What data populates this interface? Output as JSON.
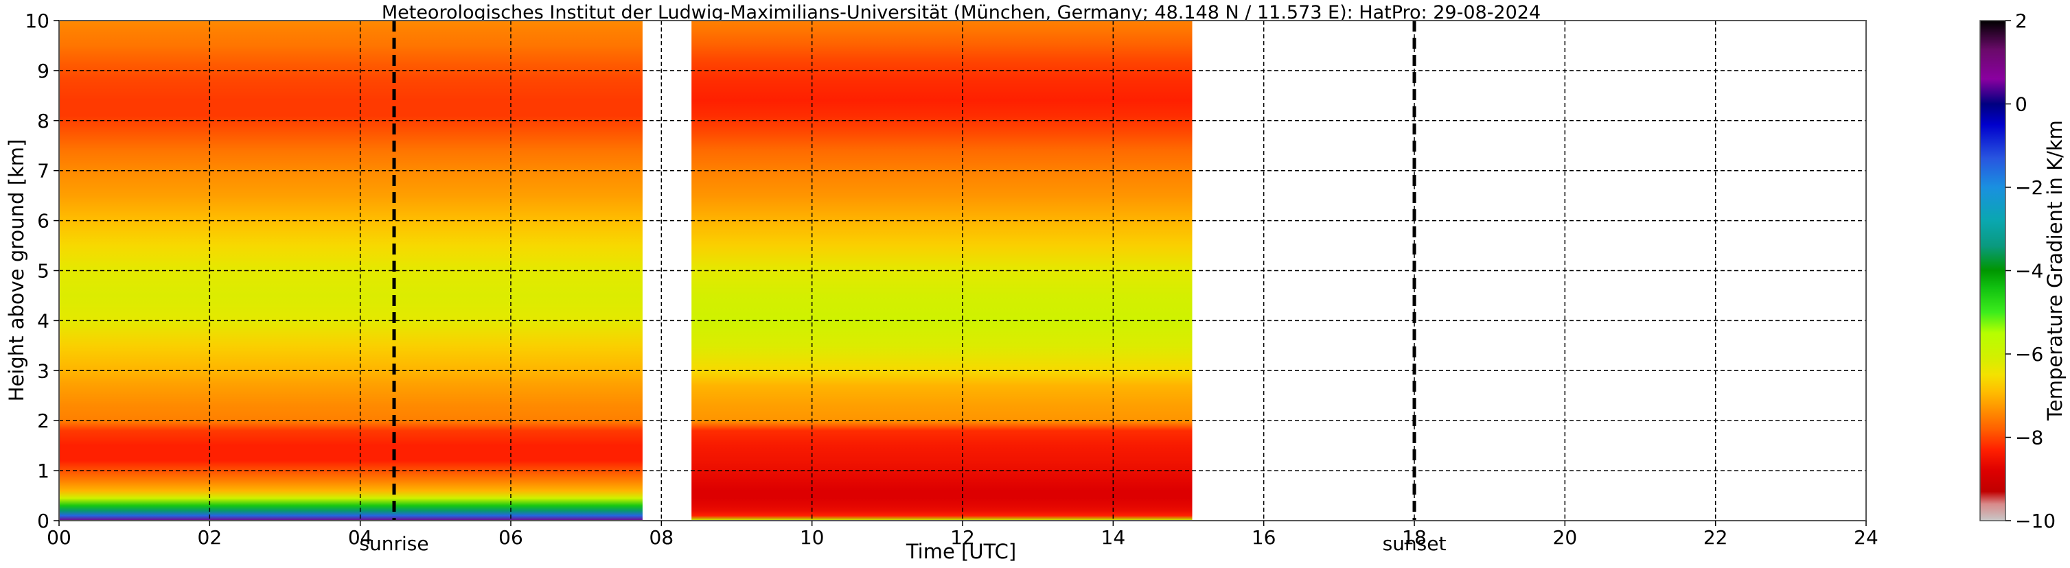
{
  "chart_data": {
    "type": "heatmap",
    "title": "Meteorologisches Institut der Ludwig-Maximilians-Universität (München, Germany; 48.148 N / 11.573 E):    HatPro: 29-08-2024",
    "xlabel": "Time [UTC]",
    "ylabel": "Height above ground [km]",
    "xlim": [
      0,
      24
    ],
    "ylim": [
      0,
      10
    ],
    "x_ticks": [
      "00",
      "02",
      "04",
      "06",
      "08",
      "10",
      "12",
      "14",
      "16",
      "18",
      "20",
      "22",
      "24"
    ],
    "y_ticks": [
      "0",
      "1",
      "2",
      "3",
      "4",
      "5",
      "6",
      "7",
      "8",
      "9",
      "10"
    ],
    "grid": true,
    "colorbar": {
      "label": "Temperature Gradient in K/km",
      "range": [
        -10,
        2
      ],
      "ticks": [
        "2",
        "0",
        "−2",
        "−4",
        "−6",
        "−8",
        "−10"
      ]
    },
    "data_segments": [
      {
        "start": 0.0,
        "end": 7.75
      },
      {
        "start": 8.4,
        "end": 15.05
      }
    ],
    "events": [
      {
        "label": "sunrise",
        "time": 4.45
      },
      {
        "label": "sunset",
        "time": 18.0
      }
    ],
    "profile_km": [
      0.0,
      0.1,
      0.2,
      0.3,
      0.45,
      0.6,
      0.8,
      1.0,
      1.2,
      1.5,
      1.8,
      2.0,
      2.3,
      2.7,
      3.0,
      3.5,
      4.0,
      4.5,
      5.0,
      5.5,
      6.0,
      6.5,
      7.0,
      7.4,
      7.8,
      8.1,
      8.4,
      8.8,
      9.2,
      9.5,
      9.8,
      10.0
    ],
    "profiles": {
      "night_K_per_km": [
        1.0,
        -1.5,
        -3.5,
        -4.5,
        -6.0,
        -7.0,
        -7.5,
        -7.9,
        -8.3,
        -8.3,
        -8.1,
        -7.5,
        -7.4,
        -7.2,
        -7.0,
        -6.7,
        -6.3,
        -6.2,
        -6.3,
        -6.6,
        -6.9,
        -7.2,
        -7.4,
        -7.6,
        -7.9,
        -8.1,
        -8.1,
        -8.0,
        -7.8,
        -7.6,
        -7.5,
        -7.4
      ],
      "day_K_per_km": [
        -5.5,
        -8.3,
        -8.6,
        -8.7,
        -8.8,
        -8.8,
        -8.7,
        -8.6,
        -8.5,
        -8.4,
        -8.2,
        -7.3,
        -7.2,
        -7.0,
        -6.6,
        -6.2,
        -6.0,
        -6.1,
        -6.3,
        -6.7,
        -7.0,
        -7.3,
        -7.5,
        -7.7,
        -8.0,
        -8.2,
        -8.3,
        -8.2,
        -8.0,
        -7.8,
        -7.6,
        -7.5
      ]
    }
  }
}
